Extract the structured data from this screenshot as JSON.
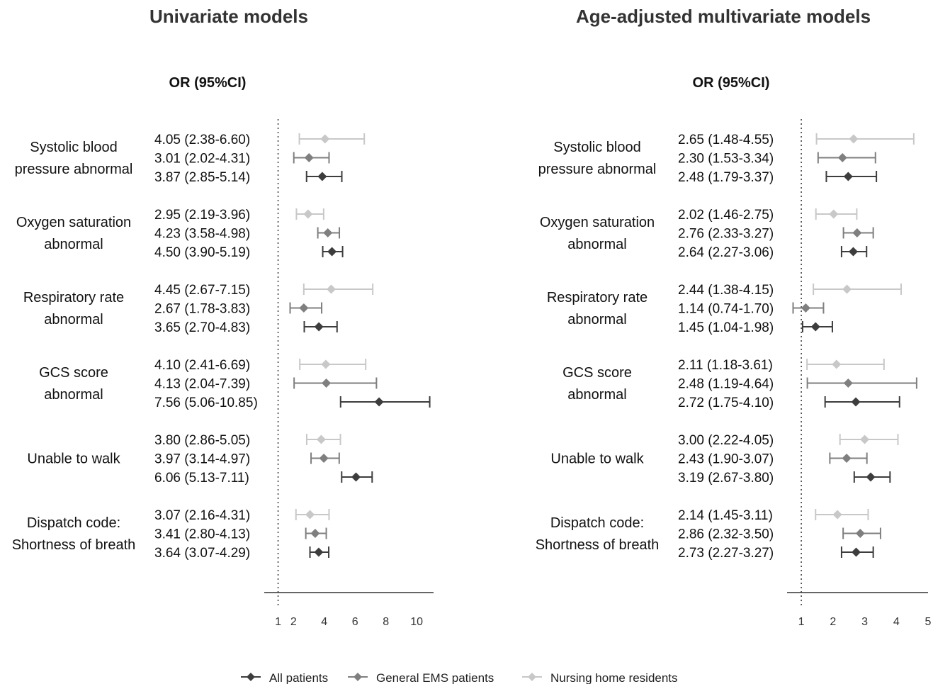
{
  "chart_data": [
    {
      "type": "forest",
      "title": "Univariate models",
      "column_header": "OR (95%CI)",
      "reference_line": 1,
      "x_ticks": [
        1,
        2,
        4,
        6,
        8,
        10
      ],
      "xlim": [
        0.1,
        11.1
      ],
      "groups": [
        {
          "label": [
            "Systolic blood",
            "pressure abnormal"
          ],
          "rows": [
            {
              "series": "Nursing home residents",
              "text": "4.05 (2.38-6.60)",
              "or": 4.05,
              "lo": 2.38,
              "hi": 6.6
            },
            {
              "series": "General EMS patients",
              "text": "3.01 (2.02-4.31)",
              "or": 3.01,
              "lo": 2.02,
              "hi": 4.31
            },
            {
              "series": "All patients",
              "text": "3.87 (2.85-5.14)",
              "or": 3.87,
              "lo": 2.85,
              "hi": 5.14
            }
          ]
        },
        {
          "label": [
            "Oxygen saturation",
            "abnormal"
          ],
          "rows": [
            {
              "series": "Nursing home residents",
              "text": "2.95 (2.19-3.96)",
              "or": 2.95,
              "lo": 2.19,
              "hi": 3.96
            },
            {
              "series": "General EMS patients",
              "text": "4.23 (3.58-4.98)",
              "or": 4.23,
              "lo": 3.58,
              "hi": 4.98
            },
            {
              "series": "All patients",
              "text": "4.50 (3.90-5.19)",
              "or": 4.5,
              "lo": 3.9,
              "hi": 5.19
            }
          ]
        },
        {
          "label": [
            "Respiratory rate",
            "abnormal"
          ],
          "rows": [
            {
              "series": "Nursing home residents",
              "text": "4.45 (2.67-7.15)",
              "or": 4.45,
              "lo": 2.67,
              "hi": 7.15
            },
            {
              "series": "General EMS patients",
              "text": "2.67 (1.78-3.83)",
              "or": 2.67,
              "lo": 1.78,
              "hi": 3.83
            },
            {
              "series": "All patients",
              "text": "3.65 (2.70-4.83)",
              "or": 3.65,
              "lo": 2.7,
              "hi": 4.83
            }
          ]
        },
        {
          "label": [
            "GCS score",
            "abnormal"
          ],
          "rows": [
            {
              "series": "Nursing home residents",
              "text": "4.10 (2.41-6.69)",
              "or": 4.1,
              "lo": 2.41,
              "hi": 6.69
            },
            {
              "series": "General EMS patients",
              "text": "4.13 (2.04-7.39)",
              "or": 4.13,
              "lo": 2.04,
              "hi": 7.39
            },
            {
              "series": "All patients",
              "text": "7.56 (5.06-10.85)",
              "or": 7.56,
              "lo": 5.06,
              "hi": 10.85
            }
          ]
        },
        {
          "label": [
            "Unable to walk"
          ],
          "rows": [
            {
              "series": "Nursing home residents",
              "text": "3.80 (2.86-5.05)",
              "or": 3.8,
              "lo": 2.86,
              "hi": 5.05
            },
            {
              "series": "General EMS patients",
              "text": "3.97 (3.14-4.97)",
              "or": 3.97,
              "lo": 3.14,
              "hi": 4.97
            },
            {
              "series": "All patients",
              "text": "6.06 (5.13-7.11)",
              "or": 6.06,
              "lo": 5.13,
              "hi": 7.11
            }
          ]
        },
        {
          "label": [
            "Dispatch code:",
            "Shortness of breath"
          ],
          "rows": [
            {
              "series": "Nursing home residents",
              "text": "3.07 (2.16-4.31)",
              "or": 3.07,
              "lo": 2.16,
              "hi": 4.31
            },
            {
              "series": "General EMS patients",
              "text": "3.41 (2.80-4.13)",
              "or": 3.41,
              "lo": 2.8,
              "hi": 4.13
            },
            {
              "series": "All patients",
              "text": "3.64 (3.07-4.29)",
              "or": 3.64,
              "lo": 3.07,
              "hi": 4.29
            }
          ]
        }
      ]
    },
    {
      "type": "forest",
      "title": "Age-adjusted multivariate models",
      "column_header": "OR (95%CI)",
      "reference_line": 1,
      "x_ticks": [
        1,
        2,
        3,
        4,
        5
      ],
      "xlim": [
        0.55,
        5.0
      ],
      "groups": [
        {
          "label": [
            "Systolic blood",
            "pressure abnormal"
          ],
          "rows": [
            {
              "series": "Nursing home residents",
              "text": "2.65 (1.48-4.55)",
              "or": 2.65,
              "lo": 1.48,
              "hi": 4.55
            },
            {
              "series": "General EMS patients",
              "text": "2.30 (1.53-3.34)",
              "or": 2.3,
              "lo": 1.53,
              "hi": 3.34
            },
            {
              "series": "All patients",
              "text": "2.48 (1.79-3.37)",
              "or": 2.48,
              "lo": 1.79,
              "hi": 3.37
            }
          ]
        },
        {
          "label": [
            "Oxygen saturation",
            "abnormal"
          ],
          "rows": [
            {
              "series": "Nursing home residents",
              "text": "2.02 (1.46-2.75)",
              "or": 2.02,
              "lo": 1.46,
              "hi": 2.75
            },
            {
              "series": "General EMS patients",
              "text": "2.76 (2.33-3.27)",
              "or": 2.76,
              "lo": 2.33,
              "hi": 3.27
            },
            {
              "series": "All patients",
              "text": "2.64 (2.27-3.06)",
              "or": 2.64,
              "lo": 2.27,
              "hi": 3.06
            }
          ]
        },
        {
          "label": [
            "Respiratory rate",
            "abnormal"
          ],
          "rows": [
            {
              "series": "Nursing home residents",
              "text": "2.44 (1.38-4.15)",
              "or": 2.44,
              "lo": 1.38,
              "hi": 4.15
            },
            {
              "series": "General EMS patients",
              "text": "1.14 (0.74-1.70)",
              "or": 1.14,
              "lo": 0.74,
              "hi": 1.7
            },
            {
              "series": "All patients",
              "text": "1.45 (1.04-1.98)",
              "or": 1.45,
              "lo": 1.04,
              "hi": 1.98
            }
          ]
        },
        {
          "label": [
            "GCS score",
            "abnormal"
          ],
          "rows": [
            {
              "series": "Nursing home residents",
              "text": "2.11 (1.18-3.61)",
              "or": 2.11,
              "lo": 1.18,
              "hi": 3.61
            },
            {
              "series": "General EMS patients",
              "text": "2.48 (1.19-4.64)",
              "or": 2.48,
              "lo": 1.19,
              "hi": 4.64
            },
            {
              "series": "All patients",
              "text": "2.72 (1.75-4.10)",
              "or": 2.72,
              "lo": 1.75,
              "hi": 4.1
            }
          ]
        },
        {
          "label": [
            "Unable to walk"
          ],
          "rows": [
            {
              "series": "Nursing home residents",
              "text": "3.00 (2.22-4.05)",
              "or": 3.0,
              "lo": 2.22,
              "hi": 4.05
            },
            {
              "series": "General EMS patients",
              "text": "2.43 (1.90-3.07)",
              "or": 2.43,
              "lo": 1.9,
              "hi": 3.07
            },
            {
              "series": "All patients",
              "text": "3.19 (2.67-3.80)",
              "or": 3.19,
              "lo": 2.67,
              "hi": 3.8
            }
          ]
        },
        {
          "label": [
            "Dispatch code:",
            "Shortness of breath"
          ],
          "rows": [
            {
              "series": "Nursing home residents",
              "text": "2.14 (1.45-3.11)",
              "or": 2.14,
              "lo": 1.45,
              "hi": 3.11
            },
            {
              "series": "General EMS patients",
              "text": "2.86 (2.32-3.50)",
              "or": 2.86,
              "lo": 2.32,
              "hi": 3.5
            },
            {
              "series": "All patients",
              "text": "2.73 (2.27-3.27)",
              "or": 2.73,
              "lo": 2.27,
              "hi": 3.27
            }
          ]
        }
      ]
    }
  ],
  "legend": {
    "placement": "bottom-center",
    "items": [
      {
        "name": "All patients",
        "color": "#3d3d3d"
      },
      {
        "name": "General EMS patients",
        "color": "#7f7f7f"
      },
      {
        "name": "Nursing home residents",
        "color": "#c8c8c8"
      }
    ]
  }
}
